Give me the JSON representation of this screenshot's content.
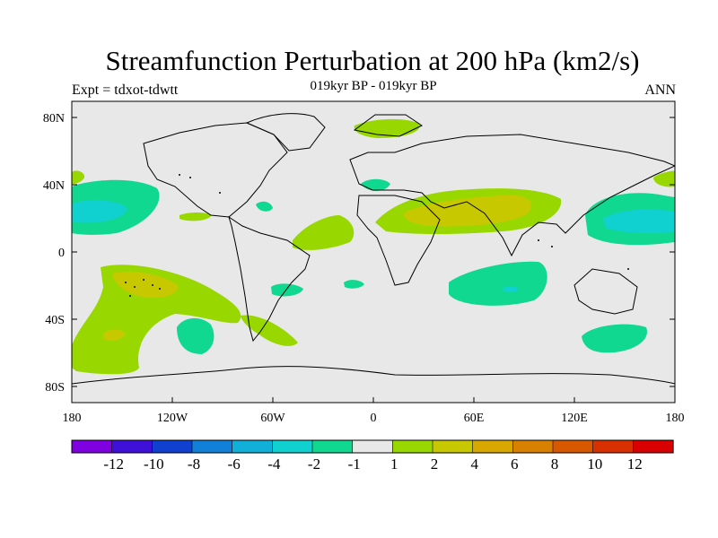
{
  "title": "Streamfunction Perturbation at 200 hPa (km2/s)",
  "left_subtitle": "Expt = tdxot-tdwtt",
  "center_subtitle": "019kyr BP - 019kyr BP",
  "right_subtitle": "ANN",
  "y_ticks": [
    "80N",
    "40N",
    "0",
    "40S",
    "80S"
  ],
  "x_ticks": [
    "180",
    "120W",
    "60W",
    "0",
    "60E",
    "120E",
    "180"
  ],
  "colorbar": {
    "colors": [
      "#7f00e0",
      "#3f10d8",
      "#1040d0",
      "#1080d8",
      "#10b0d8",
      "#10d0d0",
      "#10d890",
      "#e8e8e8",
      "#98d800",
      "#c8c800",
      "#d8a800",
      "#d88000",
      "#d85800",
      "#d83000",
      "#d80000"
    ],
    "labels": [
      "-12",
      "-10",
      "-8",
      "-6",
      "-4",
      "-2",
      "-1",
      "1",
      "2",
      "4",
      "6",
      "8",
      "10",
      "12"
    ]
  },
  "field_colors": {
    "background": "#e8e8e8",
    "neg_weak": "#10d890",
    "neg_mid": "#10d0d0",
    "pos_weak": "#98d800",
    "pos_mid": "#c8c800"
  }
}
